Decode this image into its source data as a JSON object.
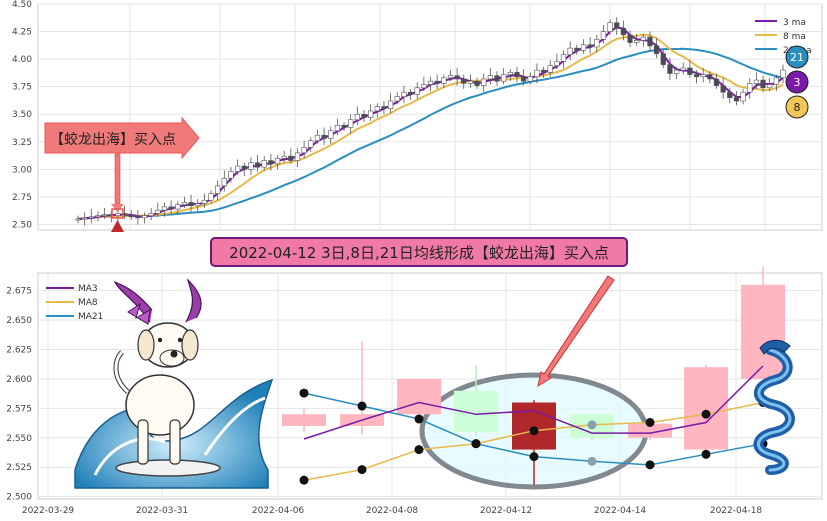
{
  "chart_data": [
    {
      "type": "candlestick",
      "ylim": [
        2.45,
        4.5
      ],
      "yticks": [
        "4.50",
        "4.25",
        "4.00",
        "3.75",
        "3.50",
        "3.25",
        "3.00",
        "2.75",
        "2.50"
      ],
      "ytick_values": [
        4.5,
        4.25,
        4.0,
        3.75,
        3.5,
        3.25,
        3.0,
        2.75,
        2.5
      ],
      "grid": true,
      "legend_position": "top-right",
      "legend": [
        "3 ma",
        "8 ma",
        "21 ma"
      ],
      "colors": {
        "up": "#ffffff",
        "down": "#4a4a5a",
        "ma3": "#7a1aa8",
        "ma8": "#e8b84a",
        "ma21": "#2a8fbf"
      },
      "closes": [
        2.55,
        2.56,
        2.57,
        2.58,
        2.59,
        2.58,
        2.6,
        2.59,
        2.57,
        2.56,
        2.58,
        2.6,
        2.63,
        2.66,
        2.64,
        2.68,
        2.7,
        2.67,
        2.69,
        2.72,
        2.78,
        2.85,
        2.92,
        2.98,
        3.03,
        3.0,
        3.06,
        3.02,
        3.08,
        3.05,
        3.1,
        3.12,
        3.08,
        3.15,
        3.2,
        3.26,
        3.31,
        3.28,
        3.35,
        3.4,
        3.38,
        3.45,
        3.5,
        3.47,
        3.53,
        3.57,
        3.55,
        3.62,
        3.66,
        3.7,
        3.68,
        3.74,
        3.77,
        3.8,
        3.78,
        3.83,
        3.85,
        3.82,
        3.78,
        3.8,
        3.76,
        3.82,
        3.85,
        3.8,
        3.86,
        3.88,
        3.84,
        3.8,
        3.84,
        3.9,
        3.88,
        3.94,
        3.98,
        4.04,
        4.1,
        4.08,
        4.13,
        4.11,
        4.18,
        4.25,
        4.33,
        4.28,
        4.22,
        4.15,
        4.17,
        4.2,
        4.12,
        4.05,
        3.95,
        3.87,
        3.9,
        3.92,
        3.86,
        3.84,
        3.86,
        3.82,
        3.76,
        3.7,
        3.65,
        3.62,
        3.7,
        3.78,
        3.81,
        3.74,
        3.77,
        3.83,
        3.9
      ],
      "ma3_label": "3",
      "ma8_label": "8",
      "ma21_label": "21",
      "signal_label": "【蛟龙出海】买入点"
    },
    {
      "type": "candlestick",
      "ylim": [
        2.498,
        2.69
      ],
      "yticks": [
        "2.675",
        "2.650",
        "2.625",
        "2.600",
        "2.575",
        "2.550",
        "2.525",
        "2.500"
      ],
      "ytick_values": [
        2.675,
        2.65,
        2.625,
        2.6,
        2.575,
        2.55,
        2.525,
        2.5
      ],
      "x_ticks": [
        "2022-03-29",
        "2022-03-31",
        "2022-04-06",
        "2022-04-08",
        "2022-04-12",
        "2022-04-14",
        "2022-04-18"
      ],
      "grid": true,
      "legend_position": "top-left",
      "legend": [
        "MA3",
        "MA8",
        "MA21"
      ],
      "colors": {
        "up": "#ffb6c1",
        "down": "#b0282a",
        "flat_up": "#ccffd8",
        "ma3": "#7a1aa8",
        "ma8": "#e8b84a",
        "ma21": "#2a8fbf"
      },
      "candles": [
        {
          "o": 2.56,
          "c": 2.57,
          "h": 2.575,
          "l": 2.555,
          "up": true
        },
        {
          "o": 2.56,
          "c": 2.57,
          "h": 2.632,
          "l": 2.553,
          "up": true
        },
        {
          "o": 2.57,
          "c": 2.6,
          "h": 2.6,
          "l": 2.567,
          "up": true
        },
        {
          "o": 2.555,
          "c": 2.59,
          "h": 2.612,
          "l": 2.552,
          "up": true
        },
        {
          "o": 2.58,
          "c": 2.54,
          "h": 2.582,
          "l": 2.51,
          "up": false
        },
        {
          "o": 2.55,
          "c": 2.57,
          "h": 2.57,
          "l": 2.548,
          "up": true
        },
        {
          "o": 2.55,
          "c": 2.562,
          "h": 2.564,
          "l": 2.548,
          "up": true
        },
        {
          "o": 2.54,
          "c": 2.61,
          "h": 2.612,
          "l": 2.532,
          "up": true
        },
        {
          "o": 2.6,
          "c": 2.68,
          "h": 2.695,
          "l": 2.6,
          "up": true
        }
      ],
      "ma3": [
        2.549,
        2.565,
        2.58,
        2.57,
        2.573,
        2.554,
        2.554,
        2.563,
        2.611
      ],
      "ma8": [
        2.514,
        2.523,
        2.54,
        2.545,
        2.556,
        2.561,
        2.563,
        2.57,
        2.58
      ],
      "ma21": [
        2.588,
        2.577,
        2.566,
        2.545,
        2.534,
        2.53,
        2.527,
        2.536,
        2.545
      ],
      "signal_title": "2022-04-12 3日,8日,21日均线形成【蛟龙出海】买入点"
    }
  ]
}
